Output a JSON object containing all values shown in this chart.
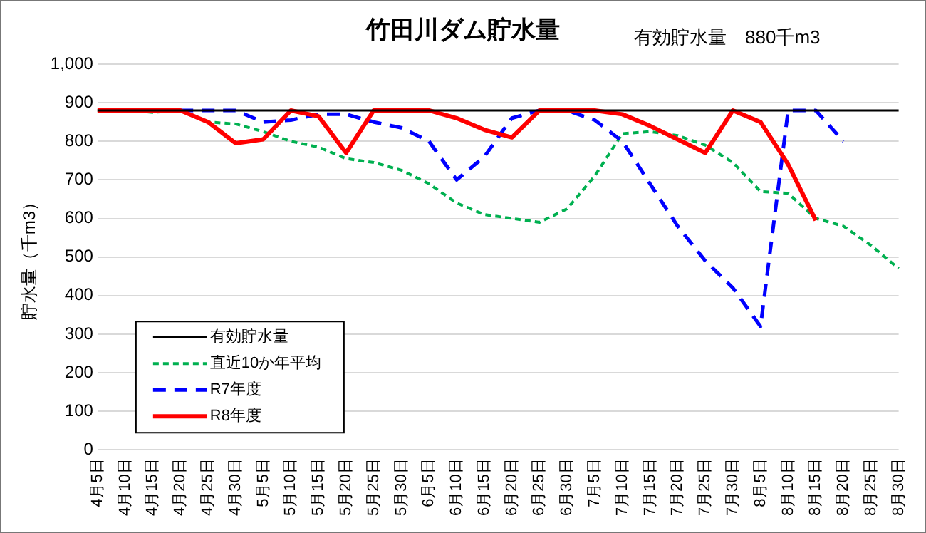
{
  "chart_data": {
    "type": "line",
    "title": "竹田川ダム貯水量",
    "annotations": [
      "有効貯水量　880千m3"
    ],
    "ylabel": "貯水量（千m3）",
    "categories": [
      "4月5日",
      "4月10日",
      "4月15日",
      "4月20日",
      "4月25日",
      "4月30日",
      "5月5日",
      "5月10日",
      "5月15日",
      "5月20日",
      "5月25日",
      "5月30日",
      "6月5日",
      "6月10日",
      "6月15日",
      "6月20日",
      "6月25日",
      "6月30日",
      "7月5日",
      "7月10日",
      "7月15日",
      "7月20日",
      "7月25日",
      "7月30日",
      "8月5日",
      "8月10日",
      "8月15日",
      "8月20日",
      "8月25日",
      "8月30日"
    ],
    "series": [
      {
        "name": "有効貯水量",
        "color": "#000000",
        "line_style": "solid",
        "values": [
          880,
          880,
          880,
          880,
          880,
          880,
          880,
          880,
          880,
          880,
          880,
          880,
          880,
          880,
          880,
          880,
          880,
          880,
          880,
          880,
          880,
          880,
          880,
          880,
          880,
          880,
          880,
          880,
          880,
          880
        ]
      },
      {
        "name": "直近10か年平均",
        "color": "#00b050",
        "line_style": "dotted",
        "values": [
          880,
          880,
          875,
          880,
          850,
          845,
          825,
          800,
          785,
          755,
          745,
          725,
          690,
          640,
          610,
          600,
          590,
          625,
          710,
          820,
          825,
          815,
          790,
          745,
          670,
          665,
          600,
          580,
          530,
          470
        ]
      },
      {
        "name": "R7年度",
        "color": "#0000ff",
        "line_style": "dashed",
        "values": [
          null,
          null,
          null,
          880,
          880,
          880,
          850,
          855,
          870,
          870,
          850,
          835,
          800,
          700,
          760,
          860,
          880,
          880,
          855,
          800,
          690,
          580,
          490,
          420,
          320,
          880,
          880,
          800,
          null,
          null
        ]
      },
      {
        "name": "R8年度",
        "color": "#ff0000",
        "line_style": "solid",
        "values": [
          880,
          880,
          880,
          880,
          850,
          795,
          805,
          880,
          865,
          770,
          880,
          880,
          880,
          860,
          830,
          810,
          880,
          880,
          880,
          870,
          840,
          805,
          770,
          880,
          850,
          740,
          595,
          null,
          null,
          null
        ]
      }
    ],
    "ylim": [
      0,
      1000
    ],
    "yticks": [
      0,
      100,
      200,
      300,
      400,
      500,
      600,
      700,
      800,
      900,
      {
        "value": 1000,
        "label": "1,000"
      }
    ],
    "grid": "y",
    "legend": "bottom left",
    "marker": "none"
  }
}
